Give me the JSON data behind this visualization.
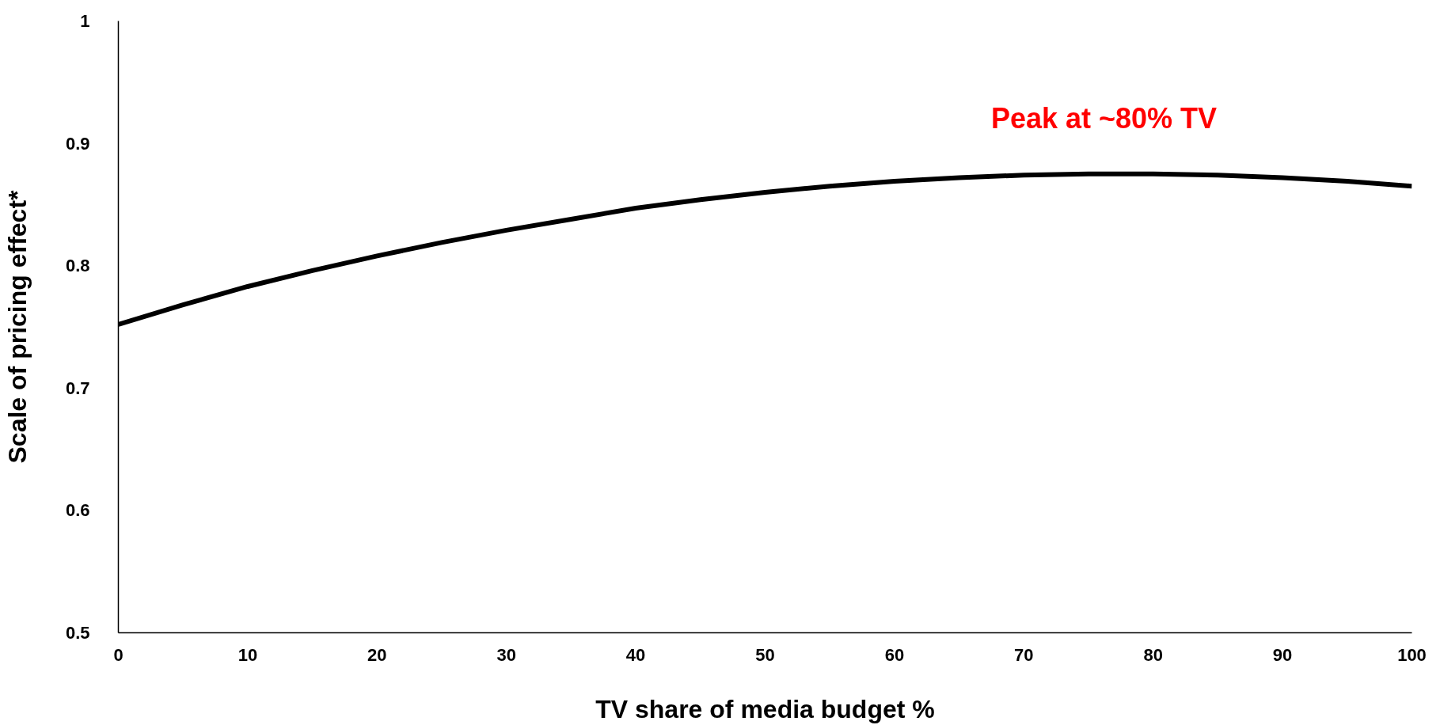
{
  "chart_data": {
    "type": "line",
    "xlabel": "TV share of media budget %",
    "ylabel": "Scale of pricing effect*",
    "x": [
      0,
      5,
      10,
      15,
      20,
      25,
      30,
      35,
      40,
      45,
      50,
      55,
      60,
      65,
      70,
      75,
      80,
      85,
      90,
      95,
      100
    ],
    "series": [
      {
        "color": "#000000",
        "values": [
          0.752,
          0.768,
          0.783,
          0.796,
          0.808,
          0.819,
          0.829,
          0.838,
          0.847,
          0.854,
          0.86,
          0.865,
          0.869,
          0.872,
          0.874,
          0.875,
          0.875,
          0.874,
          0.872,
          0.869,
          0.865
        ]
      }
    ],
    "xlim": [
      0,
      100
    ],
    "ylim": [
      0.5,
      1
    ],
    "xticks": [
      0,
      10,
      20,
      30,
      40,
      50,
      60,
      70,
      80,
      90,
      100
    ],
    "yticks": [
      0.5,
      0.6,
      0.7,
      0.8,
      0.9,
      1
    ],
    "annotations": [
      "Peak at ~80% TV"
    ],
    "grid": false,
    "marker": "none",
    "line_style": "solid"
  }
}
